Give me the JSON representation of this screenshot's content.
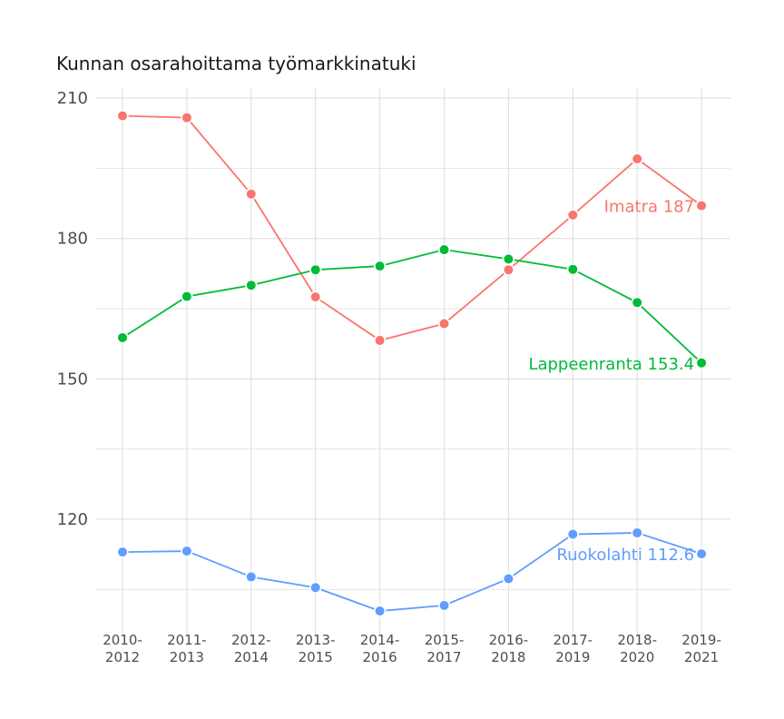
{
  "chart_data": {
    "type": "line",
    "title": "Kunnan osarahoittama työmarkkinatuki",
    "xlabel": "",
    "ylabel": "",
    "categories": [
      [
        "2010-",
        "2012"
      ],
      [
        "2011-",
        "2013"
      ],
      [
        "2012-",
        "2014"
      ],
      [
        "2013-",
        "2015"
      ],
      [
        "2014-",
        "2016"
      ],
      [
        "2015-",
        "2017"
      ],
      [
        "2016-",
        "2018"
      ],
      [
        "2017-",
        "2019"
      ],
      [
        "2018-",
        "2020"
      ],
      [
        "2019-",
        "2021"
      ]
    ],
    "ylim": [
      95,
      212
    ],
    "yticks": [
      210,
      180,
      150,
      120
    ],
    "grid": true,
    "series": [
      {
        "name": "Imatra",
        "color": "#F8766D",
        "values": [
          206.2,
          205.8,
          189.5,
          167.5,
          158.2,
          161.8,
          173.3,
          185.0,
          197.0,
          187.0
        ],
        "end_label": "Imatra 187"
      },
      {
        "name": "Lappeenranta",
        "color": "#00BA38",
        "values": [
          158.8,
          167.6,
          170.0,
          173.3,
          174.1,
          177.6,
          175.6,
          173.4,
          166.3,
          153.4
        ],
        "end_label": "Lappeenranta 153.4"
      },
      {
        "name": "Ruokolahti",
        "color": "#619CFF",
        "values": [
          113.0,
          113.2,
          107.7,
          105.4,
          100.4,
          101.6,
          107.3,
          116.8,
          117.1,
          112.6
        ],
        "end_label": "Ruokolahti 112.6"
      }
    ]
  }
}
